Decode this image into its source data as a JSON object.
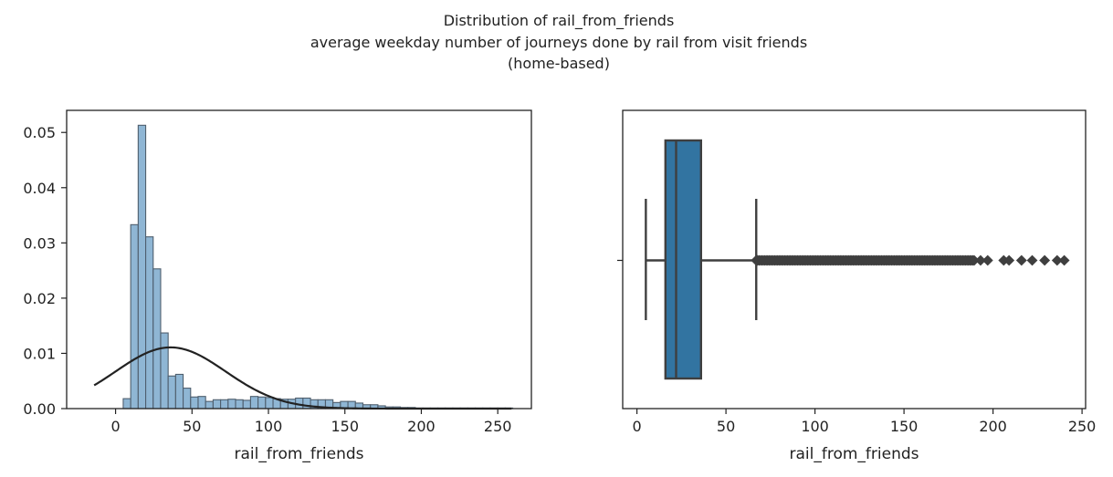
{
  "title_lines": [
    "Distribution of rail_from_friends",
    "average weekday number of journeys done by rail from visit friends",
    "(home-based)"
  ],
  "chart_data": [
    {
      "type": "bar",
      "subtype": "histogram_with_normal_fit",
      "xlabel": "rail_from_friends",
      "ylabel": "",
      "xlim": [
        -32,
        272
      ],
      "ylim": [
        0,
        0.054
      ],
      "xticks": [
        0,
        50,
        100,
        150,
        200,
        250
      ],
      "yticks": [
        0.0,
        0.01,
        0.02,
        0.03,
        0.04,
        0.05
      ],
      "ytick_labels": [
        "0.00",
        "0.01",
        "0.02",
        "0.03",
        "0.04",
        "0.05"
      ],
      "bar_color": "#8fb6d4",
      "bar_edge_color": "#4f5f6e",
      "bin_width": 4.9,
      "bin_start": 5,
      "densities": [
        0.0018,
        0.0333,
        0.0513,
        0.0311,
        0.0253,
        0.0137,
        0.0059,
        0.0062,
        0.0037,
        0.0021,
        0.0022,
        0.0013,
        0.0016,
        0.0016,
        0.0017,
        0.0016,
        0.0015,
        0.0022,
        0.0021,
        0.002,
        0.0018,
        0.0017,
        0.0017,
        0.0019,
        0.0019,
        0.0016,
        0.0016,
        0.0016,
        0.0011,
        0.0013,
        0.0013,
        0.001,
        0.0007,
        0.0007,
        0.0005,
        0.0003,
        0.0003,
        0.0002,
        0.0002,
        0.0001,
        0.0001,
        0.0001,
        0.0001,
        0.0001,
        0.0001,
        0.0001,
        0.0001,
        0.0001,
        0.0001,
        0.0001,
        0.0001,
        0.0001
      ],
      "fit": {
        "type": "normal",
        "mean": 36,
        "std": 36,
        "x_range": [
          -14,
          259
        ],
        "color": "#222222"
      }
    },
    {
      "type": "box",
      "xlabel": "rail_from_friends",
      "ylabel": "",
      "xlim": [
        -8,
        252
      ],
      "xticks": [
        0,
        50,
        100,
        150,
        200,
        250
      ],
      "box_color": "#3274a1",
      "line_color": "#3f3f3f",
      "whisker_low": 5,
      "q1": 16,
      "median": 22,
      "q3": 36,
      "whisker_high": 67,
      "outlier_dense_range": [
        67,
        190
      ],
      "outliers_sparse": [
        193,
        197,
        206,
        209,
        216,
        222,
        229,
        236,
        240
      ]
    }
  ]
}
